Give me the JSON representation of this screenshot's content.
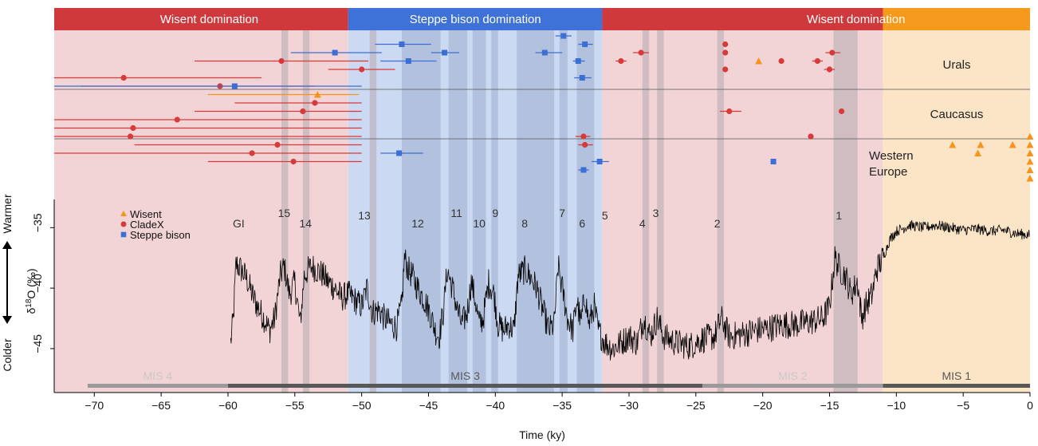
{
  "chart_data": {
    "type": "scatter",
    "xlabel": "Time (ky)",
    "ylabel": "δ18O (‰)",
    "ylabel_base": "δ",
    "ylabel_sup": "18",
    "ylabel_rest": "O (‰)",
    "warmer_label": "Warmer",
    "colder_label": "Colder",
    "xlim": [
      -73,
      0
    ],
    "ylim": [
      -48.5,
      -33
    ],
    "x_ticks": [
      -70,
      -65,
      -60,
      -55,
      -50,
      -45,
      -40,
      -35,
      -30,
      -25,
      -20,
      -15,
      -10,
      -5,
      0
    ],
    "y_ticks": [
      -45,
      -40,
      -35
    ],
    "x_tick_labels": [
      "−70",
      "−65",
      "−60",
      "−55",
      "−50",
      "−45",
      "−40",
      "−35",
      "−30",
      "−25",
      "−20",
      "−15",
      "−10",
      "−5",
      "0"
    ],
    "y_tick_labels": [
      "−45",
      "−40",
      "−35"
    ],
    "colors": {
      "wisent": "#f7941d",
      "cladex": "#d83a3a",
      "steppe": "#3c6fd6",
      "wisent_band": "#d0393c",
      "steppe_band": "#3e72d8",
      "wisent_orange_band": "#f59a1c",
      "bg_red": "#f3d4d6",
      "bg_blue": "#ccd9f2",
      "bg_orange": "#fce4c6",
      "dark_blue_band": "#a9b8d6",
      "gi_band": "#b9aeb4",
      "ice": "#000000"
    },
    "domination_bands": [
      {
        "label": "Wisent domination",
        "from": -73,
        "to": -51,
        "color": "#d0393c"
      },
      {
        "label": "Steppe bison domination",
        "from": -51,
        "to": -32,
        "color": "#3e72d8"
      },
      {
        "label": "Wisent domination",
        "from": -32,
        "to": 0,
        "color": "#d0393c"
      }
    ],
    "region_labels": [
      "Urals",
      "Caucasus",
      "Western",
      "Europe"
    ],
    "gi_labels": [
      {
        "label": "GI",
        "x": -59.2
      },
      {
        "label": "15",
        "x": -55.8
      },
      {
        "label": "14",
        "x": -54.2
      },
      {
        "label": "13",
        "x": -49.8
      },
      {
        "label": "12",
        "x": -45.8
      },
      {
        "label": "11",
        "x": -42.9
      },
      {
        "label": "10",
        "x": -41.2
      },
      {
        "label": "9",
        "x": -40.0
      },
      {
        "label": "8",
        "x": -37.8
      },
      {
        "label": "7",
        "x": -35.0
      },
      {
        "label": "6",
        "x": -33.5
      },
      {
        "label": "5",
        "x": -31.8
      },
      {
        "label": "4",
        "x": -29.0
      },
      {
        "label": "3",
        "x": -28.0
      },
      {
        "label": "2",
        "x": -23.4
      },
      {
        "label": "1",
        "x": -14.3
      }
    ],
    "mis_labels": [
      {
        "label": "MIS 4",
        "from": -70.5,
        "to": -60.0
      },
      {
        "label": "MIS 3",
        "from": -60.0,
        "to": -24.5
      },
      {
        "label": "MIS 2",
        "from": -24.5,
        "to": -11.0
      },
      {
        "label": "MIS 1",
        "from": -11.0,
        "to": 0
      }
    ],
    "legend": {
      "position": "upper-left",
      "entries": [
        {
          "name": "Wisent",
          "marker": "triangle",
          "color": "#f7941d"
        },
        {
          "name": "CladeX",
          "marker": "circle",
          "color": "#d83a3a"
        },
        {
          "name": "Steppe bison",
          "marker": "square",
          "color": "#3c6fd6"
        }
      ]
    },
    "series": [
      {
        "name": "Wisent",
        "marker": "triangle",
        "points": [
          {
            "region": "Urals",
            "x": -20.3,
            "row": 3
          },
          {
            "region": "Caucasus",
            "x": -53.3,
            "row": 7,
            "xmin": -61.5,
            "xmax": -50.2
          },
          {
            "region": "Western Europe",
            "x": -5.8,
            "row": 13
          },
          {
            "region": "Western Europe",
            "x": -3.7,
            "row": 13
          },
          {
            "region": "Western Europe",
            "x": -1.3,
            "row": 13
          },
          {
            "region": "Western Europe",
            "x": -3.9,
            "row": 14
          },
          {
            "region": "Western Europe",
            "x": 0,
            "row": 12
          },
          {
            "region": "Western Europe",
            "x": 0,
            "row": 13
          },
          {
            "region": "Western Europe",
            "x": 0,
            "row": 14
          },
          {
            "region": "Western Europe",
            "x": 0,
            "row": 15
          },
          {
            "region": "Western Europe",
            "x": 0,
            "row": 16
          },
          {
            "region": "Western Europe",
            "x": 0,
            "row": 17
          }
        ]
      },
      {
        "name": "CladeX",
        "marker": "circle",
        "points": [
          {
            "region": "Urals",
            "x": -56.0,
            "row": 3,
            "xmin": -62.5,
            "xmax": -49.5
          },
          {
            "region": "Urals",
            "x": -50.0,
            "row": 4,
            "xmin": -52.5,
            "xmax": -47.5
          },
          {
            "region": "Urals",
            "x": -67.8,
            "row": 5,
            "xmin": -73.0,
            "xmax": -57.5
          },
          {
            "region": "Urals",
            "x": -60.6,
            "row": 6,
            "xmin": -71.0,
            "xmax": -53.5
          },
          {
            "region": "Urals",
            "x": -30.6,
            "row": 3,
            "xmin": -31.0,
            "xmax": -30.2
          },
          {
            "region": "Urals",
            "x": -29.1,
            "row": 2,
            "xmin": -29.7,
            "xmax": -28.5
          },
          {
            "region": "Urals",
            "x": -22.8,
            "row": 1
          },
          {
            "region": "Urals",
            "x": -22.8,
            "row": 2
          },
          {
            "region": "Urals",
            "x": -22.8,
            "row": 4
          },
          {
            "region": "Urals",
            "x": -18.6,
            "row": 3
          },
          {
            "region": "Urals",
            "x": -15.9,
            "row": 3,
            "xmin": -16.3,
            "xmax": -15.5
          },
          {
            "region": "Urals",
            "x": -14.8,
            "row": 2,
            "xmin": -15.3,
            "xmax": -14.2
          },
          {
            "region": "Urals",
            "x": -15.0,
            "row": 4,
            "xmin": -15.4,
            "xmax": -14.6
          },
          {
            "region": "Caucasus",
            "x": -53.5,
            "row": 8,
            "xmin": -59.5,
            "xmax": -50.0
          },
          {
            "region": "Caucasus",
            "x": -54.4,
            "row": 9,
            "xmin": -62.5,
            "xmax": -50.0
          },
          {
            "region": "Caucasus",
            "x": -63.8,
            "row": 10,
            "xmin": -73.0,
            "xmax": -50.0
          },
          {
            "region": "Caucasus",
            "x": -67.1,
            "row": 11,
            "xmin": -73.0,
            "xmax": -50.0
          },
          {
            "region": "Caucasus",
            "x": -22.5,
            "row": 9,
            "xmin": -23.2,
            "xmax": -21.6
          },
          {
            "region": "Caucasus",
            "x": -14.1,
            "row": 9
          },
          {
            "region": "Western Europe",
            "x": -67.3,
            "row": 12,
            "xmin": -73.0,
            "xmax": -50.0
          },
          {
            "region": "Western Europe",
            "x": -56.3,
            "row": 13,
            "xmin": -67.0,
            "xmax": -50.0
          },
          {
            "region": "Western Europe",
            "x": -58.2,
            "row": 14,
            "xmin": -73.0,
            "xmax": -50.0
          },
          {
            "region": "Western Europe",
            "x": -55.1,
            "row": 15,
            "xmin": -61.5,
            "xmax": -50.0
          },
          {
            "region": "Western Europe",
            "x": -33.4,
            "row": 12,
            "xmin": -34.0,
            "xmax": -32.9
          },
          {
            "region": "Western Europe",
            "x": -33.3,
            "row": 13,
            "xmin": -33.8,
            "xmax": -32.7
          },
          {
            "region": "Western Europe",
            "x": -16.4,
            "row": 12
          }
        ]
      },
      {
        "name": "Steppe bison",
        "marker": "square",
        "points": [
          {
            "region": "Urals",
            "x": -52.0,
            "row": 2,
            "xmin": -55.3,
            "xmax": -48.5
          },
          {
            "region": "Urals",
            "x": -47.0,
            "row": 1,
            "xmin": -49.0,
            "xmax": -44.8
          },
          {
            "region": "Urals",
            "x": -46.5,
            "row": 3,
            "xmin": -48.6,
            "xmax": -44.4
          },
          {
            "region": "Urals",
            "x": -43.8,
            "row": 2,
            "xmin": -44.8,
            "xmax": -42.7
          },
          {
            "region": "Urals",
            "x": -36.3,
            "row": 2,
            "xmin": -37.0,
            "xmax": -35.0
          },
          {
            "region": "Urals",
            "x": -34.9,
            "row": 0,
            "xmin": -35.5,
            "xmax": -34.3
          },
          {
            "region": "Urals",
            "x": -33.8,
            "row": 3,
            "xmin": -34.2,
            "xmax": -33.3
          },
          {
            "region": "Urals",
            "x": -33.3,
            "row": 1,
            "xmin": -33.8,
            "xmax": -32.7
          },
          {
            "region": "Urals",
            "x": -33.5,
            "row": 5,
            "xmin": -34.1,
            "xmax": -32.8
          },
          {
            "region": "Caucasus",
            "x": -59.5,
            "row": 6,
            "xmin": -73.0,
            "xmax": -50.0
          },
          {
            "region": "Western Europe",
            "x": -47.2,
            "row": 14,
            "xmin": -48.6,
            "xmax": -45.4
          },
          {
            "region": "Western Europe",
            "x": -32.2,
            "row": 15,
            "xmin": -32.8,
            "xmax": -31.5
          },
          {
            "region": "Western Europe",
            "x": -33.4,
            "row": 16,
            "xmin": -33.8,
            "xmax": -33.0
          },
          {
            "region": "Western Europe",
            "x": -19.2,
            "row": 15
          }
        ]
      }
    ],
    "ice_core_anchors": [
      [
        -59.8,
        -44.5
      ],
      [
        -59.6,
        -42.5
      ],
      [
        -59.4,
        -38.0
      ],
      [
        -59.0,
        -38.5
      ],
      [
        -58.6,
        -39.2
      ],
      [
        -58.2,
        -40.5
      ],
      [
        -57.8,
        -41.5
      ],
      [
        -57.3,
        -42.5
      ],
      [
        -56.9,
        -43.5
      ],
      [
        -56.5,
        -42.5
      ],
      [
        -56.1,
        -39.0
      ],
      [
        -55.8,
        -38.2
      ],
      [
        -55.4,
        -40.5
      ],
      [
        -55.0,
        -39.5
      ],
      [
        -54.6,
        -43.0
      ],
      [
        -54.3,
        -39.0
      ],
      [
        -54.0,
        -38.5
      ],
      [
        -53.7,
        -38.2
      ],
      [
        -53.0,
        -38.8
      ],
      [
        -52.5,
        -39.5
      ],
      [
        -52.0,
        -40.0
      ],
      [
        -51.5,
        -40.8
      ],
      [
        -51.0,
        -40.5
      ],
      [
        -50.5,
        -41.0
      ],
      [
        -50.0,
        -41.5
      ],
      [
        -49.6,
        -40.0
      ],
      [
        -49.2,
        -42.0
      ],
      [
        -48.7,
        -41.8
      ],
      [
        -48.3,
        -42.5
      ],
      [
        -47.8,
        -43.0
      ],
      [
        -47.4,
        -43.2
      ],
      [
        -47.0,
        -41.5
      ],
      [
        -46.8,
        -37.5
      ],
      [
        -46.5,
        -38.5
      ],
      [
        -46.2,
        -39.0
      ],
      [
        -45.8,
        -40.0
      ],
      [
        -45.3,
        -41.0
      ],
      [
        -44.9,
        -42.0
      ],
      [
        -44.5,
        -43.5
      ],
      [
        -44.2,
        -44.0
      ],
      [
        -43.9,
        -42.0
      ],
      [
        -43.6,
        -38.5
      ],
      [
        -43.2,
        -40.0
      ],
      [
        -42.8,
        -42.0
      ],
      [
        -42.5,
        -43.0
      ],
      [
        -42.1,
        -42.0
      ],
      [
        -41.8,
        -39.5
      ],
      [
        -41.5,
        -41.0
      ],
      [
        -41.2,
        -43.0
      ],
      [
        -40.9,
        -42.5
      ],
      [
        -40.5,
        -39.5
      ],
      [
        -40.1,
        -40.5
      ],
      [
        -39.8,
        -43.0
      ],
      [
        -39.4,
        -43.5
      ],
      [
        -39.0,
        -43.0
      ],
      [
        -38.6,
        -43.5
      ],
      [
        -38.3,
        -39.0
      ],
      [
        -37.8,
        -38.5
      ],
      [
        -37.3,
        -39.2
      ],
      [
        -36.9,
        -40.0
      ],
      [
        -36.4,
        -42.0
      ],
      [
        -36.0,
        -43.5
      ],
      [
        -35.6,
        -43.0
      ],
      [
        -35.3,
        -38.2
      ],
      [
        -35.0,
        -40.0
      ],
      [
        -34.6,
        -42.5
      ],
      [
        -34.2,
        -43.5
      ],
      [
        -33.9,
        -41.0
      ],
      [
        -33.6,
        -43.0
      ],
      [
        -33.3,
        -40.5
      ],
      [
        -33.0,
        -43.0
      ],
      [
        -32.6,
        -41.5
      ],
      [
        -32.3,
        -43.5
      ],
      [
        -31.8,
        -44.5
      ],
      [
        -31.2,
        -45.0
      ],
      [
        -30.6,
        -44.5
      ],
      [
        -30.0,
        -44.0
      ],
      [
        -29.4,
        -44.5
      ],
      [
        -28.9,
        -42.5
      ],
      [
        -28.4,
        -44.0
      ],
      [
        -27.9,
        -42.5
      ],
      [
        -27.4,
        -44.0
      ],
      [
        -26.5,
        -44.5
      ],
      [
        -25.5,
        -44.8
      ],
      [
        -24.5,
        -44.2
      ],
      [
        -23.6,
        -44.0
      ],
      [
        -23.1,
        -42.5
      ],
      [
        -22.5,
        -44.0
      ],
      [
        -21.5,
        -43.8
      ],
      [
        -20.5,
        -43.5
      ],
      [
        -19.5,
        -43.3
      ],
      [
        -18.5,
        -43.0
      ],
      [
        -17.5,
        -43.0
      ],
      [
        -16.5,
        -42.8
      ],
      [
        -15.5,
        -42.5
      ],
      [
        -15.0,
        -41.5
      ],
      [
        -14.6,
        -37.5
      ],
      [
        -14.2,
        -38.5
      ],
      [
        -13.8,
        -39.0
      ],
      [
        -13.4,
        -40.5
      ],
      [
        -12.9,
        -39.5
      ],
      [
        -12.6,
        -42.5
      ],
      [
        -12.3,
        -41.5
      ],
      [
        -11.8,
        -40.5
      ],
      [
        -11.5,
        -38.5
      ],
      [
        -11.0,
        -37.5
      ],
      [
        -10.5,
        -36.0
      ],
      [
        -10.0,
        -35.3
      ],
      [
        -9.0,
        -34.8
      ],
      [
        -8.0,
        -35.0
      ],
      [
        -7.0,
        -34.8
      ],
      [
        -6.0,
        -35.0
      ],
      [
        -5.0,
        -35.2
      ],
      [
        -4.0,
        -35.1
      ],
      [
        -3.0,
        -35.3
      ],
      [
        -2.0,
        -35.2
      ],
      [
        -1.0,
        -35.5
      ],
      [
        0.0,
        -35.6
      ]
    ]
  }
}
